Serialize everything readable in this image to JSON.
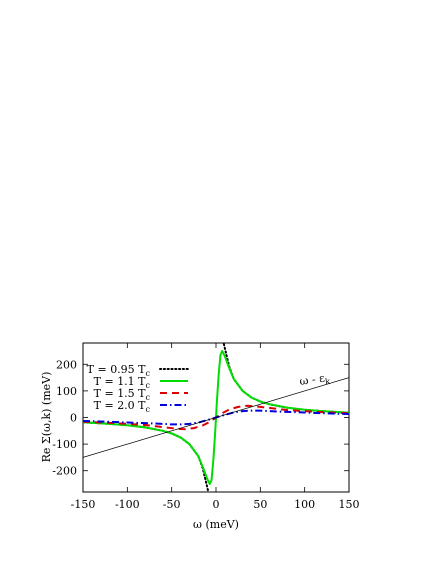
{
  "chart_data": {
    "type": "line",
    "title": "",
    "xlabel": "ω  (meV)",
    "ylabel": "Re Σ(ω,k)  (meV)",
    "xlim": [
      -150,
      150
    ],
    "ylim": [
      -280,
      280
    ],
    "xticks": [
      -150,
      -100,
      -50,
      0,
      50,
      100,
      150
    ],
    "yticks": [
      -200,
      -100,
      0,
      100,
      200
    ],
    "grid": false,
    "legend_position": "top-left",
    "series": [
      {
        "name": "T = 0.95 T",
        "name_sub": "c",
        "style": "dotted",
        "color": "#000000",
        "points": [
          [
            -150,
            -18
          ],
          [
            -120,
            -24
          ],
          [
            -100,
            -29
          ],
          [
            -80,
            -37
          ],
          [
            -60,
            -50
          ],
          [
            -50,
            -60
          ],
          [
            -40,
            -75
          ],
          [
            -30,
            -100
          ],
          [
            -20,
            -145
          ],
          [
            -15,
            -190
          ],
          [
            -10,
            -260
          ],
          [
            -8,
            -290
          ],
          [
            8,
            290
          ],
          [
            10,
            260
          ],
          [
            15,
            190
          ],
          [
            20,
            145
          ],
          [
            30,
            100
          ],
          [
            40,
            75
          ],
          [
            50,
            60
          ],
          [
            60,
            50
          ],
          [
            80,
            37
          ],
          [
            100,
            29
          ],
          [
            120,
            24
          ],
          [
            150,
            18
          ]
        ]
      },
      {
        "name": "T = 1.1 T",
        "name_sub": "c",
        "style": "solid",
        "color": "#00dd00",
        "points": [
          [
            -150,
            -18
          ],
          [
            -120,
            -24
          ],
          [
            -100,
            -29
          ],
          [
            -80,
            -37
          ],
          [
            -60,
            -50
          ],
          [
            -50,
            -60
          ],
          [
            -40,
            -75
          ],
          [
            -30,
            -100
          ],
          [
            -20,
            -145
          ],
          [
            -15,
            -185
          ],
          [
            -10,
            -230
          ],
          [
            -7,
            -250
          ],
          [
            -5,
            -235
          ],
          [
            -3,
            -160
          ],
          [
            -1,
            -60
          ],
          [
            0,
            0
          ],
          [
            1,
            60
          ],
          [
            3,
            160
          ],
          [
            5,
            235
          ],
          [
            7,
            250
          ],
          [
            10,
            230
          ],
          [
            15,
            185
          ],
          [
            20,
            145
          ],
          [
            30,
            100
          ],
          [
            40,
            75
          ],
          [
            50,
            60
          ],
          [
            60,
            50
          ],
          [
            80,
            37
          ],
          [
            100,
            29
          ],
          [
            120,
            24
          ],
          [
            150,
            18
          ]
        ]
      },
      {
        "name": "T = 1.5 T",
        "name_sub": "c",
        "style": "dashed",
        "color": "#dd0000",
        "points": [
          [
            -150,
            -16
          ],
          [
            -120,
            -20
          ],
          [
            -100,
            -24
          ],
          [
            -80,
            -28
          ],
          [
            -60,
            -36
          ],
          [
            -45,
            -42
          ],
          [
            -35,
            -44
          ],
          [
            -25,
            -40
          ],
          [
            -15,
            -30
          ],
          [
            -8,
            -18
          ],
          [
            0,
            0
          ],
          [
            8,
            18
          ],
          [
            15,
            30
          ],
          [
            25,
            40
          ],
          [
            35,
            44
          ],
          [
            45,
            42
          ],
          [
            60,
            36
          ],
          [
            80,
            28
          ],
          [
            100,
            24
          ],
          [
            120,
            20
          ],
          [
            150,
            16
          ]
        ]
      },
      {
        "name": "T = 2.0 T",
        "name_sub": "c",
        "style": "dashdot",
        "color": "#0000dd",
        "points": [
          [
            -150,
            -13
          ],
          [
            -120,
            -16
          ],
          [
            -100,
            -19
          ],
          [
            -80,
            -21
          ],
          [
            -60,
            -24
          ],
          [
            -50,
            -26
          ],
          [
            -40,
            -26
          ],
          [
            -30,
            -24
          ],
          [
            -20,
            -19
          ],
          [
            -10,
            -10
          ],
          [
            0,
            0
          ],
          [
            10,
            10
          ],
          [
            20,
            19
          ],
          [
            30,
            24
          ],
          [
            40,
            26
          ],
          [
            50,
            26
          ],
          [
            60,
            24
          ],
          [
            80,
            21
          ],
          [
            100,
            19
          ],
          [
            120,
            16
          ],
          [
            150,
            13
          ]
        ]
      },
      {
        "name": "",
        "style": "thin",
        "color": "#000000",
        "points": [
          [
            -150,
            -150
          ],
          [
            150,
            150
          ]
        ]
      }
    ],
    "annotation": {
      "text": "ω - ε",
      "sub": "k",
      "x": 120,
      "y": 160
    }
  }
}
